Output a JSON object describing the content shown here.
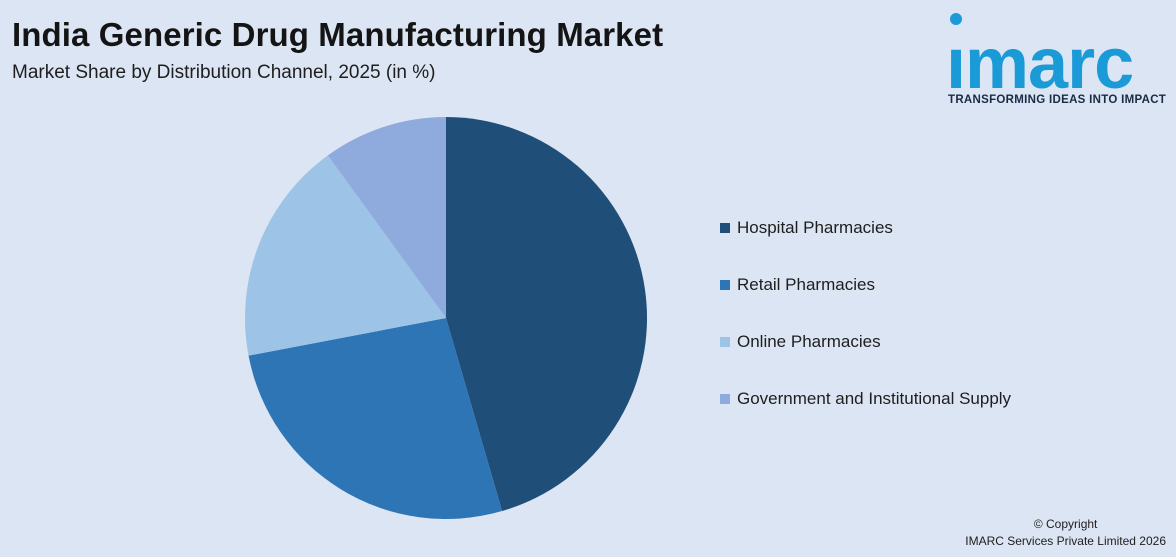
{
  "header": {
    "title": "India Generic Drug Manufacturing Market",
    "subtitle": "Market Share by Distribution Channel, 2025 (in %)"
  },
  "logo": {
    "word": "ımarc",
    "tagline": "TRANSFORMING IDEAS INTO IMPACT",
    "color": "#1a9ad6"
  },
  "chart_data": {
    "type": "pie",
    "title": "India Generic Drug Manufacturing Market",
    "subtitle": "Market Share by Distribution Channel, 2025 (in %)",
    "start_angle_deg": 0,
    "direction": "clockwise",
    "legend_position": "right",
    "slices": [
      {
        "label": "Hospital Pharmacies",
        "value": 45.5,
        "color": "#1f4e79"
      },
      {
        "label": "Retail Pharmacies",
        "value": 26.5,
        "color": "#2e75b6"
      },
      {
        "label": "Online Pharmacies",
        "value": 18.0,
        "color": "#9dc3e6"
      },
      {
        "label": "Government and Institutional Supply",
        "value": 10.0,
        "color": "#8faadc"
      }
    ]
  },
  "footer": {
    "copyright_line1": "© Copyright",
    "copyright_line2": "IMARC Services Private Limited 2026"
  }
}
